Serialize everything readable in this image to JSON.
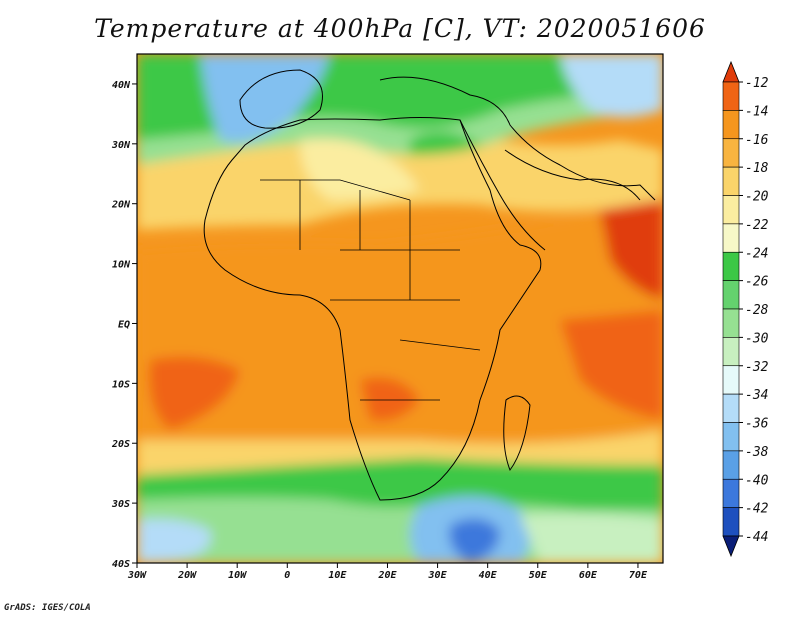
{
  "title": "Temperature at 400hPa [C], VT: 2020051606",
  "footer": "GrADS: IGES/COLA",
  "map": {
    "lon_range": [
      -30,
      75
    ],
    "lat_range": [
      -40,
      45
    ],
    "lon_ticks": [
      "30W",
      "20W",
      "10W",
      "0",
      "10E",
      "20E",
      "30E",
      "40E",
      "50E",
      "60E",
      "70E"
    ],
    "lat_ticks": [
      "40S",
      "30S",
      "20S",
      "10S",
      "EQ",
      "10N",
      "20N",
      "30N",
      "40N"
    ]
  },
  "colorbar": {
    "levels": [
      "-12",
      "-14",
      "-16",
      "-18",
      "-20",
      "-22",
      "-24",
      "-26",
      "-28",
      "-30",
      "-32",
      "-34",
      "-36",
      "-38",
      "-40",
      "-42",
      "-44"
    ],
    "colors": [
      "#e03c0a",
      "#f06414",
      "#f5961e",
      "#f8b440",
      "#fad46a",
      "#fbeda0",
      "#f7f8c8",
      "#3cc846",
      "#64d26e",
      "#96e092",
      "#c8f0c0",
      "#e6fafa",
      "#b4dcf8",
      "#82c0f0",
      "#5aa0e6",
      "#3c78dc",
      "#1e50be",
      "#0a1e78"
    ]
  },
  "colors": {
    "frame": "#000000",
    "land_outline": "#000000"
  }
}
